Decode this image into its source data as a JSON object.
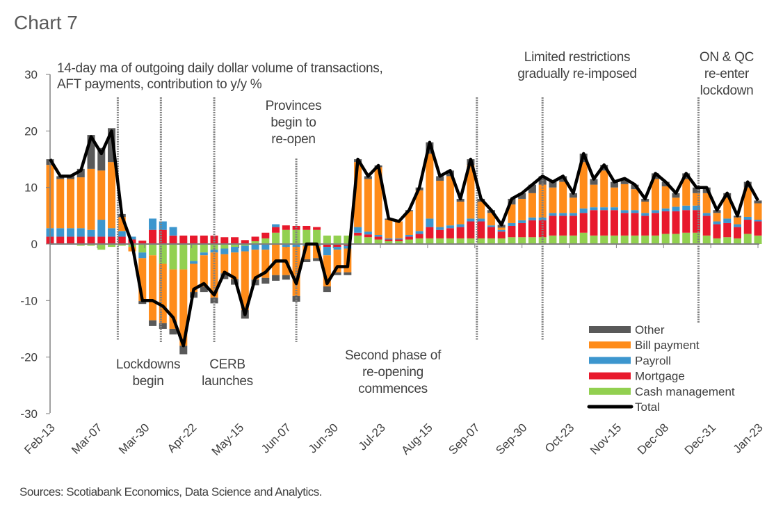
{
  "chart_data": {
    "type": "bar",
    "title": "Chart 7",
    "subtitle": [
      "14-day ma of outgoing daily dollar volume of transactions,",
      "AFT payments, contribution to y/y %"
    ],
    "source": "Sources: Scotiabank Economics, Data Science and Analytics.",
    "ylim": [
      -30,
      30
    ],
    "yticks": [
      30,
      20,
      10,
      0,
      -10,
      -20,
      -30
    ],
    "xticks": [
      "Feb-13",
      "Mar-07",
      "Mar-30",
      "Apr-22",
      "May-15",
      "Jun-07",
      "Jun-30",
      "Jul-23",
      "Aug-15",
      "Sep-07",
      "Sep-30",
      "Oct-23",
      "Nov-15",
      "Dec-08",
      "Dec-31",
      "Jan-23"
    ],
    "legend_position": "bottom-right",
    "x": [
      "Feb-13",
      "Feb-18",
      "Feb-23",
      "Feb-28",
      "Mar-04",
      "Mar-09",
      "Mar-14",
      "Mar-19",
      "Mar-24",
      "Mar-29",
      "Apr-03",
      "Apr-08",
      "Apr-13",
      "Apr-18",
      "Apr-23",
      "Apr-28",
      "May-03",
      "May-08",
      "May-13",
      "May-18",
      "May-23",
      "May-28",
      "Jun-02",
      "Jun-07",
      "Jun-12",
      "Jun-17",
      "Jun-22",
      "Jun-27",
      "Jul-02",
      "Jul-07",
      "Jul-12",
      "Jul-17",
      "Jul-22",
      "Jul-27",
      "Aug-01",
      "Aug-06",
      "Aug-11",
      "Aug-16",
      "Aug-21",
      "Aug-26",
      "Aug-31",
      "Sep-05",
      "Sep-10",
      "Sep-15",
      "Sep-20",
      "Sep-25",
      "Sep-30",
      "Oct-05",
      "Oct-10",
      "Oct-15",
      "Oct-20",
      "Oct-25",
      "Oct-30",
      "Nov-04",
      "Nov-09",
      "Nov-14",
      "Nov-19",
      "Nov-24",
      "Nov-29",
      "Dec-04",
      "Dec-09",
      "Dec-14",
      "Dec-19",
      "Dec-24",
      "Dec-29",
      "Jan-03",
      "Jan-08",
      "Jan-13",
      "Jan-18",
      "Jan-23"
    ],
    "series": [
      {
        "name": "Cash management",
        "kind": "bar",
        "color": "#92D050",
        "values": [
          0,
          0,
          0,
          -0.3,
          -0.3,
          -1,
          -0.5,
          -0.3,
          -0.5,
          -1.5,
          -2,
          -3.5,
          -4.5,
          -4.5,
          -3,
          -1.5,
          -1,
          -0.8,
          -0.5,
          -0.3,
          0.5,
          1,
          2,
          2.5,
          2.5,
          2.5,
          2.5,
          1.5,
          1.5,
          1.5,
          1.5,
          1.2,
          0.8,
          0.5,
          0.5,
          0.8,
          1,
          1,
          1,
          1,
          1,
          1,
          1,
          1,
          1,
          1.2,
          1.2,
          1.2,
          1.2,
          1.5,
          1.5,
          1.5,
          2,
          1.5,
          1.5,
          1.5,
          1.5,
          1.5,
          1.5,
          1.5,
          1.8,
          1.8,
          2,
          2,
          1.5,
          1,
          1.2,
          1,
          1.8,
          1.5
        ]
      },
      {
        "name": "Mortgage",
        "kind": "bar",
        "color": "#E8192C",
        "values": [
          1.3,
          1.3,
          1.3,
          1.3,
          1.3,
          1.3,
          1.3,
          1.3,
          0.8,
          0.6,
          2.5,
          2.5,
          1.5,
          1.5,
          1.5,
          1.5,
          1.5,
          1.2,
          1.2,
          0.7,
          0.8,
          1,
          1,
          0.8,
          0.7,
          0.7,
          0.5,
          -0.5,
          -0.5,
          -0.3,
          0.5,
          0.5,
          0.5,
          0.3,
          0.3,
          0.5,
          0.8,
          2,
          1.5,
          1.8,
          2,
          3,
          3,
          2,
          1.2,
          2,
          2.5,
          3,
          3,
          3.5,
          3.5,
          3.5,
          3.5,
          4.5,
          4.5,
          4.5,
          4,
          4,
          3.5,
          4,
          4,
          4,
          4,
          4,
          3.5,
          2.5,
          2.5,
          2,
          2.5,
          2.5
        ]
      },
      {
        "name": "Payroll",
        "kind": "bar",
        "color": "#3C96CE",
        "values": [
          1.5,
          1.5,
          1.5,
          1.5,
          1.2,
          3,
          1.5,
          1,
          0.5,
          -1,
          2,
          1.5,
          1.5,
          0,
          -0.5,
          -0.5,
          -0.5,
          -1,
          -1,
          -1,
          -1,
          -1,
          0.5,
          -0.5,
          -0.5,
          -0.3,
          -0.3,
          -1.5,
          -0.5,
          -0.5,
          1,
          0.5,
          0.3,
          0.2,
          0.2,
          0.3,
          0.5,
          1.5,
          0.5,
          0.5,
          0.5,
          0.5,
          0.5,
          0.3,
          0.3,
          0.5,
          0.5,
          0.5,
          0.5,
          0.5,
          0.5,
          0.5,
          0.8,
          0.5,
          0.5,
          0.5,
          0.5,
          0.5,
          0.5,
          0.5,
          0.5,
          0.8,
          0.8,
          0.8,
          0.5,
          0.5,
          0.8,
          0.5,
          0.5,
          0.3
        ]
      },
      {
        "name": "Bill payment",
        "kind": "bar",
        "color": "#FF8C1A",
        "values": [
          11.2,
          8.7,
          8.7,
          9,
          10.8,
          8.7,
          11.7,
          2.5,
          -0.8,
          -7.6,
          -11.5,
          -10.5,
          -10.5,
          -13.5,
          -5,
          -5.5,
          -8,
          -3.4,
          -4.7,
          -10.4,
          -5.3,
          -5,
          -5.5,
          -5,
          -8.7,
          -2.4,
          -2.2,
          -5.5,
          -4,
          -4.2,
          11.5,
          9.3,
          12,
          3.3,
          3,
          4.2,
          7.2,
          11.5,
          8.2,
          8.7,
          4,
          9.5,
          3,
          2.2,
          0.4,
          3.3,
          3.8,
          4.3,
          5.8,
          4.5,
          5.5,
          2.7,
          8.2,
          4,
          6.5,
          3.5,
          4.6,
          3.7,
          2,
          5.5,
          3.9,
          1.6,
          4.7,
          2.2,
          3.5,
          1.5,
          3.7,
          1.2,
          5.2,
          2.9
        ]
      },
      {
        "name": "Other",
        "kind": "bar",
        "color": "#595959",
        "values": [
          1,
          0.5,
          0.5,
          1.5,
          6,
          4,
          6,
          0.5,
          0,
          -0.5,
          -1,
          -1,
          -1,
          -1.5,
          -1,
          -1,
          -1,
          -1,
          -1,
          -1.5,
          -1,
          -1,
          -1,
          -0.8,
          -1,
          -0.5,
          -0.5,
          -1,
          -0.5,
          -0.5,
          0.5,
          0.5,
          0.3,
          0.2,
          0,
          0.2,
          0.5,
          2,
          0.8,
          1,
          0.5,
          1,
          0.5,
          0.5,
          0.5,
          1,
          1,
          1.5,
          1.5,
          1,
          1,
          0.8,
          1.5,
          1,
          1,
          1,
          1,
          0.8,
          0.5,
          1,
          0.8,
          0.8,
          1,
          1,
          1,
          0.5,
          0.8,
          0.3,
          1,
          0.5
        ]
      },
      {
        "name": "Total",
        "kind": "line",
        "color": "#000000",
        "values": [
          15,
          12,
          12,
          13,
          19,
          16,
          20,
          5,
          0,
          -10,
          -10,
          -11,
          -13,
          -18,
          -8,
          -7,
          -9,
          -5,
          -6,
          -12.5,
          -6,
          -5,
          -3,
          -3,
          -7,
          0,
          0,
          -7,
          -4,
          -4,
          15,
          12,
          13.9,
          4.5,
          4,
          6,
          10,
          18,
          12,
          13,
          8,
          15,
          8,
          6,
          3.4,
          8,
          9,
          10.5,
          12,
          11,
          12,
          9,
          16,
          11.5,
          14,
          11,
          11.6,
          10.5,
          8,
          12.5,
          11,
          9,
          12.5,
          10,
          10,
          6,
          9,
          5,
          11,
          7.7
        ]
      }
    ],
    "legend_order": [
      "Other",
      "Bill payment",
      "Payroll",
      "Mortgage",
      "Cash management",
      "Total"
    ],
    "annotations": [
      {
        "date": "Mar-17",
        "lines": [
          "Lockdowns",
          "begin"
        ]
      },
      {
        "date": "Apr-07",
        "lines": []
      },
      {
        "date": "May-03",
        "lines": [
          "CERB",
          "launches"
        ]
      },
      {
        "date": "Jun-12",
        "lines": [
          "Provinces",
          "begin to",
          "re-open"
        ]
      },
      {
        "date": "Sep-08",
        "lines": [
          "Second phase of",
          "re-opening",
          "commences"
        ]
      },
      {
        "date": "Oct-10",
        "lines": [
          "Limited restrictions",
          "gradually re-imposed"
        ]
      },
      {
        "date": "Dec-25",
        "lines": [
          "ON & QC",
          "re-enter",
          "lockdown"
        ]
      }
    ]
  }
}
